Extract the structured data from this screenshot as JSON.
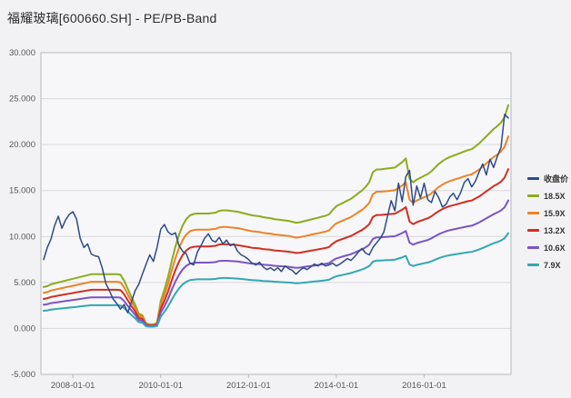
{
  "title": "福耀玻璃[600660.SH] - PE/PB-Band",
  "styles": {
    "page_background": "#f2f2f4",
    "plot_background": "#f7f7f9",
    "plot_border": "#b5b8bd",
    "gridline": "#d8d9dc",
    "axis_text": "#55585d",
    "title_text": "#2e2e2e"
  },
  "chart_data": {
    "type": "line",
    "title": "福耀玻璃[600660.SH] - PE/PB-Band",
    "grid": "horizontal-only",
    "legend_position": "right-middle",
    "ylim": [
      -5,
      30
    ],
    "y_tick_labels": [
      "30.000",
      "25.000",
      "20.000",
      "15.000",
      "10.000",
      "5.000",
      "0.000",
      "-5.000"
    ],
    "y_tick_values": [
      30,
      25,
      20,
      15,
      10,
      5,
      0,
      -5
    ],
    "x_tick_labels": [
      "2008-01-01",
      "2010-01-01",
      "2012-01-01",
      "2014-01-01",
      "2016-01-01"
    ],
    "x_tick_month_index": [
      8,
      32,
      56,
      80,
      104
    ],
    "x_start_month": "2007-05",
    "x_end_month": "2017-12",
    "points_per_series": 128,
    "series": [
      {
        "name": "收盘价",
        "role": "price",
        "color": "#2e4a86",
        "values": [
          7.5,
          8.8,
          9.7,
          11.2,
          12.2,
          10.9,
          11.8,
          12.4,
          12.7,
          11.9,
          9.8,
          8.8,
          9.2,
          8.1,
          7.9,
          7.8,
          6.6,
          4.9,
          4.1,
          3.2,
          2.7,
          2.1,
          2.6,
          1.7,
          2.9,
          4.1,
          4.8,
          5.9,
          7.0,
          8.0,
          7.3,
          8.8,
          10.8,
          11.3,
          10.5,
          10.2,
          10.4,
          9.0,
          8.4,
          8.1,
          7.1,
          6.9,
          8.3,
          9.0,
          9.8,
          10.3,
          9.6,
          9.4,
          9.9,
          9.2,
          9.6,
          9.0,
          9.2,
          8.4,
          8.0,
          7.8,
          7.5,
          7.1,
          6.9,
          7.2,
          6.7,
          6.4,
          6.6,
          6.3,
          6.6,
          6.2,
          6.8,
          6.5,
          6.3,
          5.9,
          6.3,
          6.6,
          6.4,
          6.7,
          7.0,
          6.8,
          7.1,
          6.8,
          6.9,
          7.1,
          6.8,
          7.0,
          7.3,
          7.6,
          7.4,
          7.8,
          8.3,
          8.7,
          8.2,
          8.0,
          8.8,
          9.3,
          9.8,
          10.5,
          12.2,
          13.9,
          12.8,
          15.8,
          13.8,
          16.5,
          17.2,
          13.4,
          15.5,
          14.2,
          15.8,
          14.0,
          13.7,
          14.9,
          14.2,
          13.2,
          13.5,
          14.3,
          14.7,
          14.0,
          14.8,
          15.9,
          16.3,
          15.4,
          16.0,
          17.0,
          17.9,
          16.7,
          18.4,
          17.5,
          18.7,
          19.7,
          23.3,
          22.9
        ]
      },
      {
        "name": "18.5X",
        "role": "pe-band",
        "color": "#8dab1f",
        "multiplier": 18.5
      },
      {
        "name": "15.9X",
        "role": "pe-band",
        "color": "#ee8326",
        "multiplier": 15.9
      },
      {
        "name": "13.2X",
        "role": "pe-band",
        "color": "#d22d20",
        "multiplier": 13.2
      },
      {
        "name": "10.6X",
        "role": "pe-band",
        "color": "#7a54c8",
        "multiplier": 10.6
      },
      {
        "name": "7.9X",
        "role": "pe-band",
        "color": "#33a7b2",
        "multiplier": 7.9
      }
    ],
    "pe_band_18_5x_values": [
      4.5,
      4.6,
      4.8,
      4.9,
      5.0,
      5.1,
      5.2,
      5.3,
      5.4,
      5.5,
      5.6,
      5.7,
      5.8,
      5.9,
      5.9,
      5.9,
      5.9,
      5.9,
      5.9,
      5.9,
      5.9,
      5.85,
      5.2,
      4.3,
      3.4,
      2.6,
      1.6,
      1.45,
      0.55,
      0.45,
      0.45,
      0.6,
      3.0,
      4.2,
      5.6,
      7.3,
      8.9,
      10.2,
      11.2,
      11.9,
      12.3,
      12.45,
      12.5,
      12.5,
      12.5,
      12.5,
      12.55,
      12.6,
      12.8,
      12.85,
      12.85,
      12.8,
      12.75,
      12.7,
      12.6,
      12.5,
      12.4,
      12.3,
      12.25,
      12.2,
      12.1,
      12.05,
      12.0,
      11.9,
      11.85,
      11.8,
      11.75,
      11.7,
      11.6,
      11.5,
      11.55,
      11.65,
      11.75,
      11.85,
      11.95,
      12.05,
      12.15,
      12.25,
      12.4,
      12.9,
      13.3,
      13.5,
      13.7,
      13.9,
      14.1,
      14.4,
      14.7,
      15.0,
      15.4,
      15.9,
      17.0,
      17.3,
      17.3,
      17.35,
      17.4,
      17.45,
      17.5,
      17.8,
      18.1,
      18.5,
      16.3,
      15.9,
      16.2,
      16.4,
      16.6,
      16.8,
      17.1,
      17.5,
      17.9,
      18.2,
      18.45,
      18.65,
      18.8,
      18.95,
      19.1,
      19.25,
      19.4,
      19.5,
      19.8,
      20.1,
      20.5,
      20.9,
      21.3,
      21.7,
      22.0,
      22.4,
      23.0,
      24.3
    ]
  }
}
